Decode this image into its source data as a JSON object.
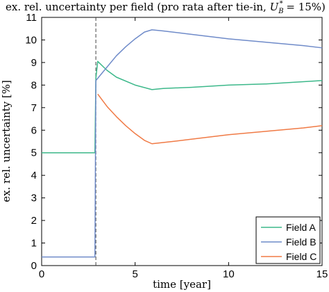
{
  "chart_data": {
    "type": "line",
    "title": "ex. rel. uncertainty per field (pro rata after tie-in, ",
    "title_math_base": "U",
    "title_math_sub": "B",
    "title_math_sup": "*",
    "title_math_tail": " = 15%)",
    "xlabel": "time [year]",
    "ylabel": "ex. rel. uncertainty [%]",
    "xlim": [
      0,
      15
    ],
    "ylim": [
      0,
      11
    ],
    "xticks": [
      "0",
      "5",
      "10",
      "15"
    ],
    "yticks": [
      "0",
      "1",
      "2",
      "3",
      "4",
      "5",
      "6",
      "7",
      "8",
      "9",
      "10",
      "11"
    ],
    "grid": false,
    "legend_position": "bottom-right",
    "vertical_marker_x": 2.9,
    "series": [
      {
        "name": "Field A",
        "color": "#3cb88a",
        "x": [
          0,
          1,
          2,
          2.8,
          2.85,
          2.9,
          3.0,
          3.5,
          4.0,
          5.0,
          5.9,
          6.5,
          8,
          10,
          12,
          14,
          15
        ],
        "y": [
          5.0,
          5.0,
          5.0,
          5.0,
          5.0,
          8.3,
          9.05,
          8.65,
          8.35,
          8.0,
          7.8,
          7.85,
          7.9,
          8.0,
          8.05,
          8.15,
          8.2
        ]
      },
      {
        "name": "Field B",
        "color": "#6f8bc9",
        "x": [
          0,
          1,
          2,
          2.8,
          2.85,
          2.9,
          3.0,
          3.5,
          4.0,
          4.5,
          5.0,
          5.5,
          5.9,
          6.5,
          8,
          10,
          12,
          14,
          15
        ],
        "y": [
          0.38,
          0.38,
          0.38,
          0.38,
          0.38,
          8.2,
          8.3,
          8.8,
          9.3,
          9.7,
          10.05,
          10.35,
          10.45,
          10.4,
          10.25,
          10.05,
          9.9,
          9.75,
          9.65
        ]
      },
      {
        "name": "Field C",
        "color": "#f07a45",
        "x": [
          3.0,
          3.5,
          4.0,
          4.5,
          5.0,
          5.5,
          5.9,
          7,
          8,
          10,
          12,
          14,
          15
        ],
        "y": [
          7.6,
          7.05,
          6.6,
          6.2,
          5.85,
          5.55,
          5.4,
          5.5,
          5.6,
          5.8,
          5.95,
          6.1,
          6.2
        ]
      }
    ]
  }
}
